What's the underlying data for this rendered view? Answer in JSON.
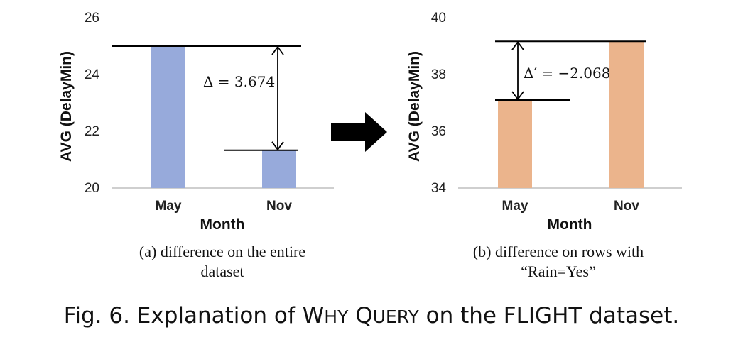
{
  "chart_data": [
    {
      "type": "bar",
      "categories": [
        "May",
        "Nov"
      ],
      "values": [
        25.0,
        21.33
      ],
      "ylabel": "AVG (DelayMin)",
      "xlabel": "Month",
      "ylim": [
        20,
        26
      ],
      "yticks": [
        "20",
        "22",
        "24",
        "26"
      ],
      "bar_color": "#97aadb",
      "annotation": "Δ = 3.674",
      "caption": [
        "(a) difference on the entire",
        "dataset"
      ],
      "grid": false
    },
    {
      "type": "bar",
      "categories": [
        "May",
        "Nov"
      ],
      "values": [
        37.1,
        39.17
      ],
      "ylabel": "AVG (DelayMin)",
      "xlabel": "Month",
      "ylim": [
        34,
        40
      ],
      "yticks": [
        "34",
        "36",
        "38",
        "40"
      ],
      "bar_color": "#ebb48c",
      "annotation": "Δ′ = −2.068",
      "caption": [
        "(b) difference on rows with",
        "“Rain=Yes”"
      ],
      "grid": false
    }
  ],
  "figure_caption": {
    "prefix": "Fig. 6.  Explanation of ",
    "sc1_initial": "W",
    "sc1_rest": "HY",
    "sc2_initial": "Q",
    "sc2_rest": "UERY",
    "suffix": " on the FLIGHT dataset."
  },
  "colors": {
    "arrow": "#000000",
    "axis": "#bfbfbf"
  }
}
